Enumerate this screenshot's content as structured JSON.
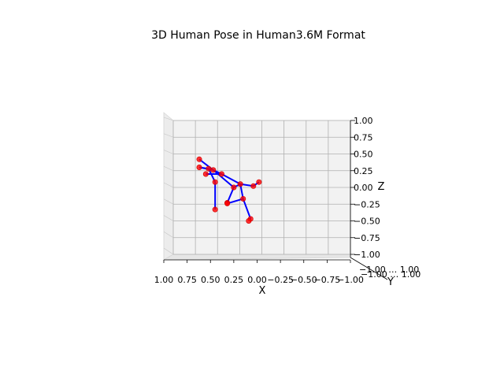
{
  "chart_data": {
    "type": "scatter",
    "title": "3D Human Pose in Human3.6M Format",
    "xlabel": "X",
    "ylabel": "Y",
    "zlabel": "Z",
    "xlim": [
      1.0,
      -1.0
    ],
    "zlim": [
      -1.0,
      1.0
    ],
    "x_ticks": [
      "1.00",
      "0.75",
      "0.50",
      "0.25",
      "0.00",
      "−0.25",
      "−0.50",
      "−0.75",
      "−1.00"
    ],
    "z_ticks": [
      "1.00",
      "0.75",
      "0.50",
      "0.25",
      "0.00",
      "−0.25",
      "−0.50",
      "−0.75",
      "−1.00"
    ],
    "y_ticks_overlapping": "−1.00 … 1.00",
    "grid": true,
    "joint_color": "#ff0000",
    "bone_color": "#0000ff",
    "joints": [
      {
        "x": 0.18,
        "z": 0.05
      },
      {
        "x": 0.38,
        "z": 0.2
      },
      {
        "x": 0.55,
        "z": 0.2
      },
      {
        "x": 0.15,
        "z": -0.17
      },
      {
        "x": 0.07,
        "z": -0.47
      },
      {
        "x": 0.04,
        "z": 0.02
      },
      {
        "x": -0.02,
        "z": 0.08
      },
      {
        "x": 0.25,
        "z": 0.0
      },
      {
        "x": 0.32,
        "z": -0.23
      },
      {
        "x": 0.47,
        "z": 0.26
      },
      {
        "x": 0.62,
        "z": 0.42
      },
      {
        "x": 0.62,
        "z": 0.3
      },
      {
        "x": 0.52,
        "z": 0.28
      },
      {
        "x": 0.45,
        "z": 0.08
      },
      {
        "x": 0.45,
        "z": -0.33
      },
      {
        "x": 0.32,
        "z": -0.24
      },
      {
        "x": 0.09,
        "z": -0.5
      }
    ],
    "bones": [
      [
        0,
        1
      ],
      [
        1,
        2
      ],
      [
        0,
        3
      ],
      [
        3,
        4
      ],
      [
        0,
        5
      ],
      [
        5,
        6
      ],
      [
        0,
        7
      ],
      [
        7,
        8
      ],
      [
        1,
        9
      ],
      [
        9,
        10
      ],
      [
        9,
        11
      ],
      [
        11,
        12
      ],
      [
        12,
        13
      ],
      [
        13,
        14
      ],
      [
        9,
        7
      ],
      [
        8,
        15
      ],
      [
        15,
        3
      ]
    ]
  }
}
